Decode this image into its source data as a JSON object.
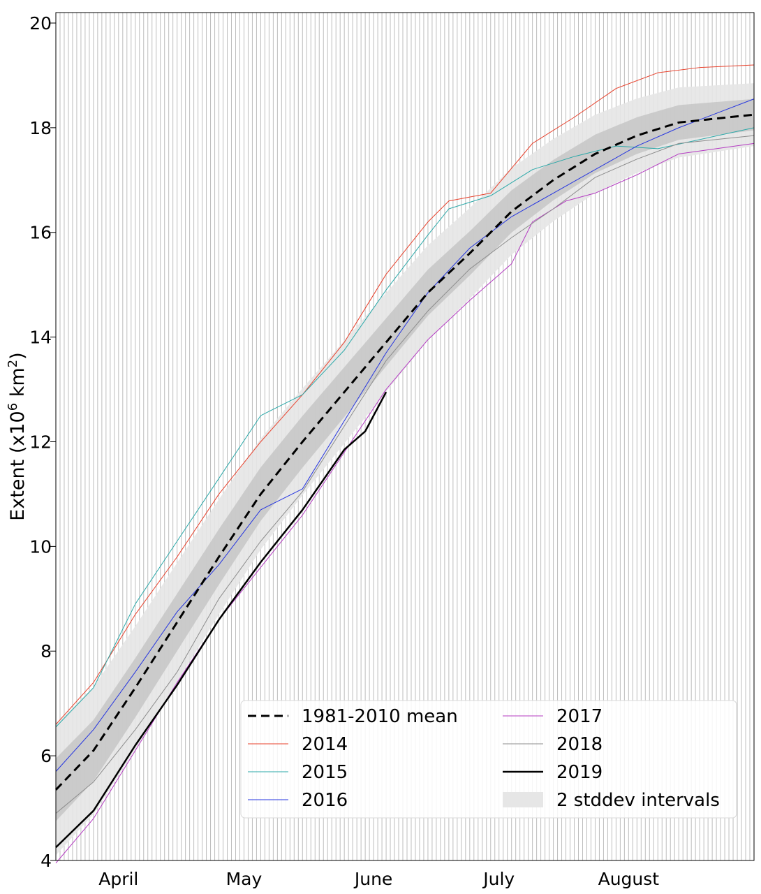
{
  "chart_data": {
    "type": "line",
    "title": "",
    "xlabel": "",
    "ylabel": "Extent (x10",
    "ylabel_sup": "6",
    "ylabel_unit": " km",
    "ylabel_unit_sup": "2",
    "ylabel_close": ")",
    "x_unit": "day of year",
    "xlim": [
      76,
      243
    ],
    "ylim": [
      4,
      20.2
    ],
    "yticks": [
      "4",
      "6",
      "8",
      "10",
      "12",
      "14",
      "16",
      "18",
      "20"
    ],
    "month_labels": [
      {
        "label": "April",
        "center": 91
      },
      {
        "label": "May",
        "center": 121
      },
      {
        "label": "June",
        "center": 152
      },
      {
        "label": "July",
        "center": 182
      },
      {
        "label": "August",
        "center": 213
      }
    ],
    "grid": "daily vertical lines",
    "legend_position": "lower-right",
    "legend_columns": 2,
    "band": {
      "name": "2 stddev intervals",
      "outer_halfwidth_start": 1.25,
      "outer_halfwidth_end": 0.6,
      "inner_halfwidth_start": 0.6,
      "inner_halfwidth_end": 0.3,
      "color_outer": "#e6e6e6",
      "color_inner": "#c8c8c8"
    },
    "series": [
      {
        "name": "1981-2010 mean",
        "color": "#000000",
        "style": "dashed",
        "width": 3,
        "points": [
          [
            76,
            5.35
          ],
          [
            85,
            6.1
          ],
          [
            95,
            7.3
          ],
          [
            105,
            8.55
          ],
          [
            115,
            9.8
          ],
          [
            125,
            11.0
          ],
          [
            135,
            12.0
          ],
          [
            145,
            12.95
          ],
          [
            155,
            13.9
          ],
          [
            165,
            14.85
          ],
          [
            175,
            15.6
          ],
          [
            185,
            16.4
          ],
          [
            195,
            17.0
          ],
          [
            205,
            17.5
          ],
          [
            215,
            17.85
          ],
          [
            225,
            18.1
          ],
          [
            243,
            18.25
          ]
        ]
      },
      {
        "name": "2014",
        "color": "#e8402b",
        "style": "solid",
        "width": 1,
        "points": [
          [
            76,
            6.6
          ],
          [
            85,
            7.4
          ],
          [
            95,
            8.7
          ],
          [
            105,
            9.8
          ],
          [
            115,
            11.0
          ],
          [
            125,
            12.0
          ],
          [
            135,
            12.9
          ],
          [
            145,
            13.9
          ],
          [
            155,
            15.2
          ],
          [
            165,
            16.2
          ],
          [
            170,
            16.6
          ],
          [
            180,
            16.75
          ],
          [
            190,
            17.7
          ],
          [
            200,
            18.2
          ],
          [
            210,
            18.75
          ],
          [
            220,
            19.05
          ],
          [
            230,
            19.15
          ],
          [
            243,
            19.2
          ]
        ]
      },
      {
        "name": "2015",
        "color": "#2aa8a8",
        "style": "solid",
        "width": 1,
        "points": [
          [
            76,
            6.55
          ],
          [
            85,
            7.3
          ],
          [
            95,
            8.9
          ],
          [
            105,
            10.1
          ],
          [
            115,
            11.3
          ],
          [
            125,
            12.5
          ],
          [
            135,
            12.9
          ],
          [
            145,
            13.75
          ],
          [
            155,
            14.9
          ],
          [
            165,
            15.95
          ],
          [
            170,
            16.45
          ],
          [
            180,
            16.7
          ],
          [
            190,
            17.2
          ],
          [
            200,
            17.45
          ],
          [
            210,
            17.65
          ],
          [
            220,
            17.6
          ],
          [
            243,
            18.0
          ]
        ]
      },
      {
        "name": "2016",
        "color": "#2535e0",
        "style": "solid",
        "width": 1,
        "points": [
          [
            76,
            5.7
          ],
          [
            85,
            6.5
          ],
          [
            95,
            7.6
          ],
          [
            105,
            8.75
          ],
          [
            115,
            9.65
          ],
          [
            125,
            10.7
          ],
          [
            135,
            11.1
          ],
          [
            145,
            12.4
          ],
          [
            155,
            13.7
          ],
          [
            165,
            14.85
          ],
          [
            175,
            15.7
          ],
          [
            185,
            16.3
          ],
          [
            195,
            16.75
          ],
          [
            205,
            17.2
          ],
          [
            215,
            17.65
          ],
          [
            225,
            18.0
          ],
          [
            243,
            18.55
          ]
        ]
      },
      {
        "name": "2017",
        "color": "#b43ac2",
        "style": "solid",
        "width": 1,
        "points": [
          [
            76,
            3.95
          ],
          [
            85,
            4.8
          ],
          [
            95,
            6.1
          ],
          [
            105,
            7.4
          ],
          [
            115,
            8.6
          ],
          [
            125,
            9.6
          ],
          [
            135,
            10.6
          ],
          [
            145,
            11.8
          ],
          [
            155,
            13.0
          ],
          [
            165,
            13.95
          ],
          [
            175,
            14.7
          ],
          [
            185,
            15.4
          ],
          [
            190,
            16.2
          ],
          [
            198,
            16.6
          ],
          [
            205,
            16.75
          ],
          [
            215,
            17.1
          ],
          [
            225,
            17.5
          ],
          [
            243,
            17.7
          ]
        ]
      },
      {
        "name": "2018",
        "color": "#8c8c8c",
        "style": "solid",
        "width": 1,
        "points": [
          [
            76,
            4.9
          ],
          [
            85,
            5.5
          ],
          [
            95,
            6.5
          ],
          [
            105,
            7.6
          ],
          [
            115,
            9.0
          ],
          [
            125,
            10.1
          ],
          [
            135,
            11.05
          ],
          [
            145,
            12.3
          ],
          [
            155,
            13.55
          ],
          [
            165,
            14.5
          ],
          [
            175,
            15.3
          ],
          [
            185,
            15.9
          ],
          [
            195,
            16.45
          ],
          [
            205,
            17.05
          ],
          [
            215,
            17.4
          ],
          [
            225,
            17.7
          ],
          [
            243,
            17.85
          ]
        ]
      },
      {
        "name": "2019",
        "color": "#000000",
        "style": "solid",
        "width": 2.5,
        "points": [
          [
            76,
            4.25
          ],
          [
            85,
            4.95
          ],
          [
            95,
            6.2
          ],
          [
            105,
            7.35
          ],
          [
            115,
            8.6
          ],
          [
            125,
            9.7
          ],
          [
            135,
            10.7
          ],
          [
            145,
            11.85
          ],
          [
            150,
            12.2
          ],
          [
            155,
            12.95
          ]
        ]
      }
    ]
  }
}
